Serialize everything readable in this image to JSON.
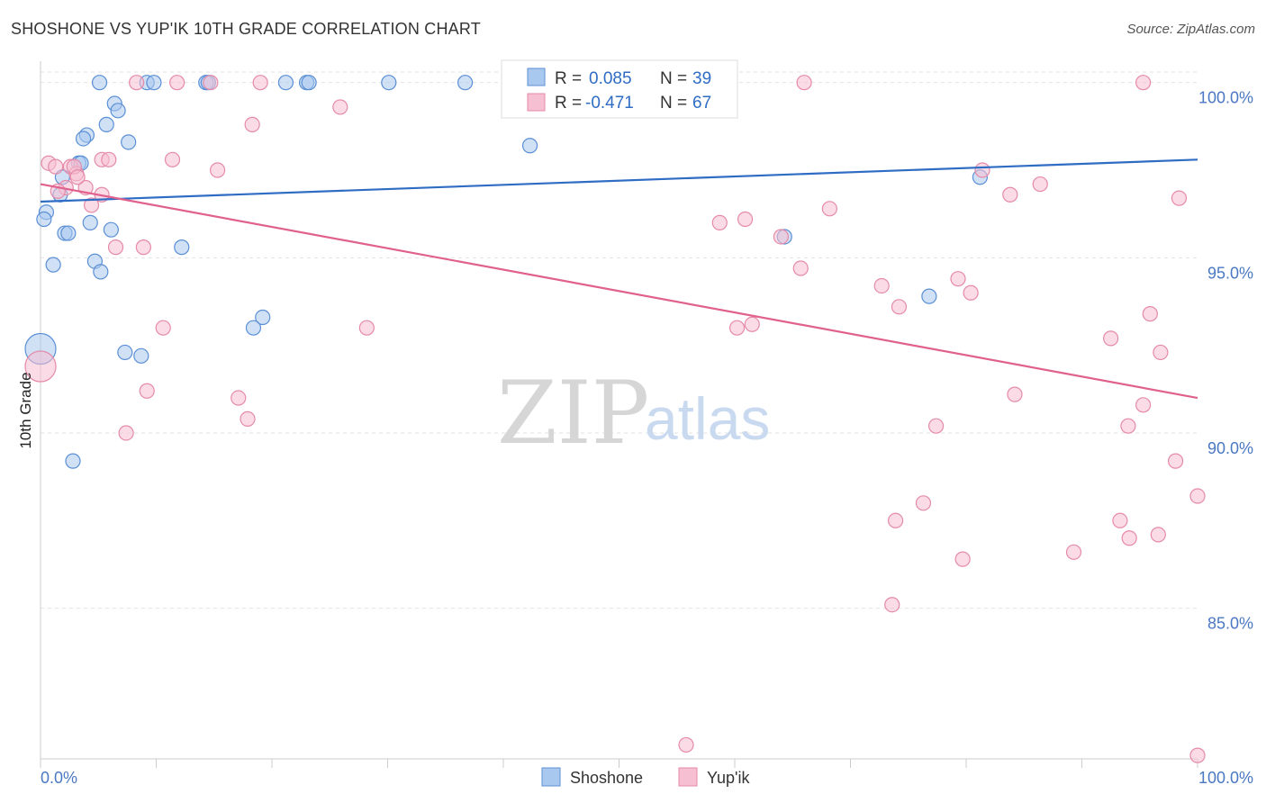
{
  "title": "SHOSHONE VS YUP'IK 10TH GRADE CORRELATION CHART",
  "source": "Source: ZipAtlas.com",
  "watermark": {
    "zip": "ZIP",
    "atlas": "atlas"
  },
  "chart_data": {
    "type": "scatter",
    "ylabel": "10th Grade",
    "x_tick_labels": [
      "0.0%",
      "100.0%"
    ],
    "y_tick_labels": [
      "100.0%",
      "95.0%",
      "90.0%",
      "85.0%"
    ],
    "y_ticks": [
      100,
      95,
      90,
      85
    ],
    "xlim": [
      0,
      100
    ],
    "ylim": [
      80.7,
      100.3
    ],
    "grid": true,
    "legend_position": "top-center",
    "colors": {
      "shoshone_fill": "#a9c8ef",
      "shoshone_stroke": "#5b8fd6",
      "shoshone_line": "#2f6cc4",
      "yupik_fill": "#f7bfd2",
      "yupik_stroke": "#e58aa8",
      "yupik_line": "#e0608e"
    },
    "stats": [
      {
        "r_label": "R =",
        "r_value": "0.085",
        "n_label": "N =",
        "n_value": "39"
      },
      {
        "r_label": "R =",
        "r_value": "-0.471",
        "n_label": "N =",
        "n_value": "67"
      }
    ],
    "series": [
      {
        "name": "Shoshone",
        "trend": [
          [
            0,
            96.6
          ],
          [
            100,
            97.8
          ]
        ],
        "points": [
          [
            5.1,
            100
          ],
          [
            9.2,
            100
          ],
          [
            9.8,
            100
          ],
          [
            14.3,
            100
          ],
          [
            14.5,
            100
          ],
          [
            21.2,
            100
          ],
          [
            23,
            100
          ],
          [
            23.2,
            100
          ],
          [
            30.1,
            100
          ],
          [
            36.7,
            100
          ],
          [
            6.4,
            99.4
          ],
          [
            6.7,
            99.2
          ],
          [
            5.7,
            98.8
          ],
          [
            4,
            98.5
          ],
          [
            3.7,
            98.4
          ],
          [
            7.6,
            98.3
          ],
          [
            42.3,
            98.2
          ],
          [
            3.3,
            97.7
          ],
          [
            3.5,
            97.7
          ],
          [
            1.9,
            97.3
          ],
          [
            81.2,
            97.3
          ],
          [
            1.7,
            96.8
          ],
          [
            0.5,
            96.3
          ],
          [
            0.3,
            96.1
          ],
          [
            4.3,
            96
          ],
          [
            6.1,
            95.8
          ],
          [
            2.1,
            95.7
          ],
          [
            2.4,
            95.7
          ],
          [
            64.3,
            95.6
          ],
          [
            12.2,
            95.3
          ],
          [
            4.7,
            94.9
          ],
          [
            1.1,
            94.8
          ],
          [
            5.2,
            94.6
          ],
          [
            76.8,
            93.9
          ],
          [
            19.2,
            93.3
          ],
          [
            18.4,
            93
          ],
          [
            7.3,
            92.3
          ],
          [
            8.7,
            92.2
          ],
          [
            2.8,
            89.2
          ]
        ],
        "sizes": [
          0,
          0,
          0,
          0,
          0,
          0,
          0,
          0,
          0,
          0,
          0,
          0,
          0,
          0,
          0,
          0,
          0,
          0,
          0,
          0,
          0,
          0,
          0,
          0,
          0,
          0,
          0,
          0,
          0,
          0,
          0,
          0,
          0,
          0,
          0,
          0,
          0,
          0,
          0
        ],
        "big_point": [
          0,
          92.4
        ]
      },
      {
        "name": "Yup'ik",
        "trend": [
          [
            0,
            97.1
          ],
          [
            100,
            91
          ]
        ],
        "points": [
          [
            8.3,
            100
          ],
          [
            11.8,
            100
          ],
          [
            14.7,
            100
          ],
          [
            19,
            100
          ],
          [
            41.5,
            100
          ],
          [
            51.1,
            100
          ],
          [
            66,
            100
          ],
          [
            95.3,
            100
          ],
          [
            25.9,
            99.3
          ],
          [
            18.3,
            98.8
          ],
          [
            5.3,
            97.8
          ],
          [
            5.9,
            97.8
          ],
          [
            11.4,
            97.8
          ],
          [
            0.7,
            97.7
          ],
          [
            1.3,
            97.6
          ],
          [
            2.6,
            97.6
          ],
          [
            3.1,
            97.4
          ],
          [
            15.3,
            97.5
          ],
          [
            81.4,
            97.5
          ],
          [
            86.4,
            97.1
          ],
          [
            2.2,
            97
          ],
          [
            3.9,
            97
          ],
          [
            5.3,
            96.8
          ],
          [
            83.8,
            96.8
          ],
          [
            98.4,
            96.7
          ],
          [
            4.4,
            96.5
          ],
          [
            68.2,
            96.4
          ],
          [
            58.7,
            96
          ],
          [
            60.9,
            96.1
          ],
          [
            64,
            95.6
          ],
          [
            6.5,
            95.3
          ],
          [
            8.9,
            95.3
          ],
          [
            65.7,
            94.7
          ],
          [
            79.3,
            94.4
          ],
          [
            72.7,
            94.2
          ],
          [
            80.4,
            94
          ],
          [
            74.2,
            93.6
          ],
          [
            95.9,
            93.4
          ],
          [
            10.6,
            93
          ],
          [
            28.2,
            93
          ],
          [
            60.2,
            93
          ],
          [
            61.5,
            93.1
          ],
          [
            92.5,
            92.7
          ],
          [
            96.8,
            92.3
          ],
          [
            9.2,
            91.2
          ],
          [
            17.1,
            91
          ],
          [
            84.2,
            91.1
          ],
          [
            17.9,
            90.4
          ],
          [
            95.3,
            90.8
          ],
          [
            7.4,
            90
          ],
          [
            77.4,
            90.2
          ],
          [
            94,
            90.2
          ],
          [
            98.1,
            89.2
          ],
          [
            100,
            88.2
          ],
          [
            76.3,
            88
          ],
          [
            73.9,
            87.5
          ],
          [
            93.3,
            87.5
          ],
          [
            96.6,
            87.1
          ],
          [
            94.1,
            87
          ],
          [
            89.3,
            86.6
          ],
          [
            79.7,
            86.4
          ],
          [
            73.6,
            85.1
          ],
          [
            55.8,
            81.1
          ],
          [
            100,
            80.8
          ],
          [
            2.9,
            97.6
          ],
          [
            3.2,
            97.3
          ],
          [
            1.5,
            96.9
          ]
        ],
        "big_point": [
          0,
          91.9
        ]
      }
    ]
  },
  "legend": {
    "items": [
      "Shoshone",
      "Yup'ik"
    ]
  }
}
